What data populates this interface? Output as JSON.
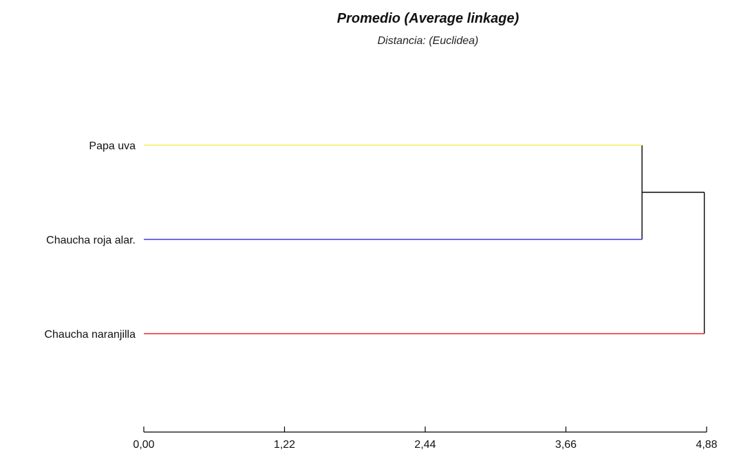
{
  "chart_data": {
    "type": "dendrogram",
    "title": "Promedio (Average linkage)",
    "subtitle": "Distancia: (Euclidea)",
    "xlim": [
      0,
      4.88
    ],
    "grid": false,
    "legend": "none",
    "ticks": [
      {
        "value": 0.0,
        "label": "0,00"
      },
      {
        "value": 1.22,
        "label": "1,22"
      },
      {
        "value": 2.44,
        "label": "2,44"
      },
      {
        "value": 3.66,
        "label": "3,66"
      },
      {
        "value": 4.88,
        "label": "4,88"
      }
    ],
    "leaves": [
      {
        "label": "Papa uva",
        "color": "#f4ef5a"
      },
      {
        "label": "Chaucha roja alar.",
        "color": "#3a3ae8"
      },
      {
        "label": "Chaucha naranjilla",
        "color": "#e8262b"
      }
    ],
    "merges": [
      {
        "members": [
          "Papa uva",
          "Chaucha roja alar."
        ],
        "height": 4.32
      },
      {
        "members": [
          "Papa uva + Chaucha roja alar.",
          "Chaucha naranjilla"
        ],
        "height": 4.86
      }
    ],
    "link_color": "#000000"
  }
}
